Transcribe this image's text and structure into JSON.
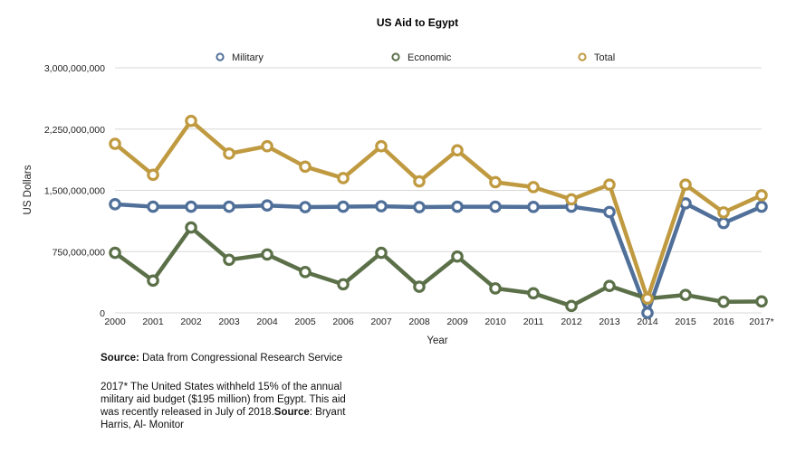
{
  "chart_data": {
    "type": "line",
    "title": "US Aid to Egypt",
    "xlabel": "Year",
    "ylabel": "US Dollars",
    "categories": [
      "2000",
      "2001",
      "2002",
      "2003",
      "2004",
      "2005",
      "2006",
      "2007",
      "2008",
      "2009",
      "2010",
      "2011",
      "2012",
      "2013",
      "2014",
      "2015",
      "2016",
      "2017*"
    ],
    "ylim": [
      0,
      3000000000
    ],
    "yticks": [
      0,
      750000000,
      1500000000,
      2250000000,
      3000000000
    ],
    "ytick_labels": [
      "0",
      "750,000,000",
      "1,500,000,000",
      "2,250,000,000",
      "3,000,000,000"
    ],
    "grid": true,
    "legend_position": "top",
    "series": [
      {
        "name": "Military",
        "color": "#50709A",
        "values": [
          1330000000,
          1300000000,
          1300000000,
          1300000000,
          1315000000,
          1295000000,
          1300000000,
          1305000000,
          1295000000,
          1300000000,
          1300000000,
          1297000000,
          1300000000,
          1235000000,
          0,
          1340000000,
          1100000000,
          1300000000
        ]
      },
      {
        "name": "Economic",
        "color": "#5B7048",
        "values": [
          735000000,
          395000000,
          1045000000,
          650000000,
          715000000,
          500000000,
          350000000,
          735000000,
          320000000,
          690000000,
          300000000,
          240000000,
          85000000,
          330000000,
          175000000,
          220000000,
          135000000,
          140000000
        ]
      },
      {
        "name": "Total",
        "color": "#C09A40",
        "values": [
          2070000000,
          1690000000,
          2350000000,
          1950000000,
          2040000000,
          1790000000,
          1650000000,
          2040000000,
          1610000000,
          1990000000,
          1600000000,
          1540000000,
          1390000000,
          1570000000,
          175000000,
          1570000000,
          1230000000,
          1440000000
        ]
      }
    ]
  },
  "notes": {
    "source_label": "Source:",
    "source_text": " Data from Congressional Research Service",
    "footnote_text": "2017* The United States withheld 15% of the annual military aid budget ($195 million) from Egypt. This aid was recently released in July of 2018.",
    "footnote_source_label": "Source",
    "footnote_source_text": ": Bryant Harris, Al- Monitor"
  }
}
